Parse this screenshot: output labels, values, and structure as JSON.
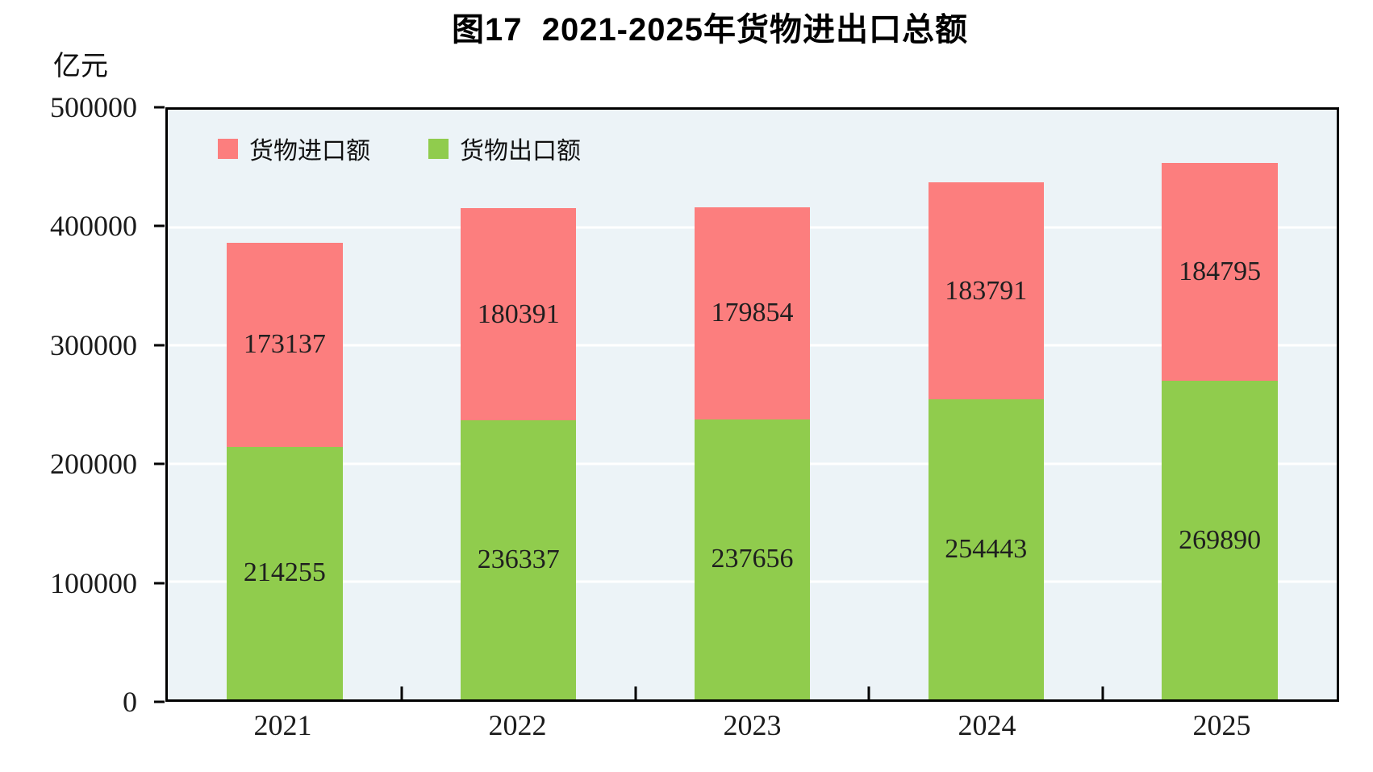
{
  "chart_data": {
    "type": "bar",
    "stacked": true,
    "title": "图17  2021-2025年货物进出口总额",
    "ylabel": "亿元",
    "categories": [
      "2021",
      "2022",
      "2023",
      "2024",
      "2025"
    ],
    "series": [
      {
        "name": "货物出口额",
        "color": "#90CC4D",
        "values": [
          214255,
          236337,
          237656,
          254443,
          269890
        ]
      },
      {
        "name": "货物进口额",
        "color": "#FC7E7E",
        "values": [
          173137,
          180391,
          179854,
          183791,
          184795
        ]
      }
    ],
    "legend_items": [
      {
        "label": "货物进口额",
        "color": "#FC7E7E"
      },
      {
        "label": "货物出口额",
        "color": "#90CC4D"
      }
    ],
    "legend_position": "top-left-inside",
    "ylim": [
      0,
      500000
    ],
    "yticks": [
      0,
      100000,
      200000,
      300000,
      400000,
      500000
    ],
    "grid": "horizontal",
    "grid_color": "#FFFFFF",
    "plot_background": "#ECF3F7",
    "axis_color": "#000000",
    "bar_label_color": "#1F1F1F"
  }
}
